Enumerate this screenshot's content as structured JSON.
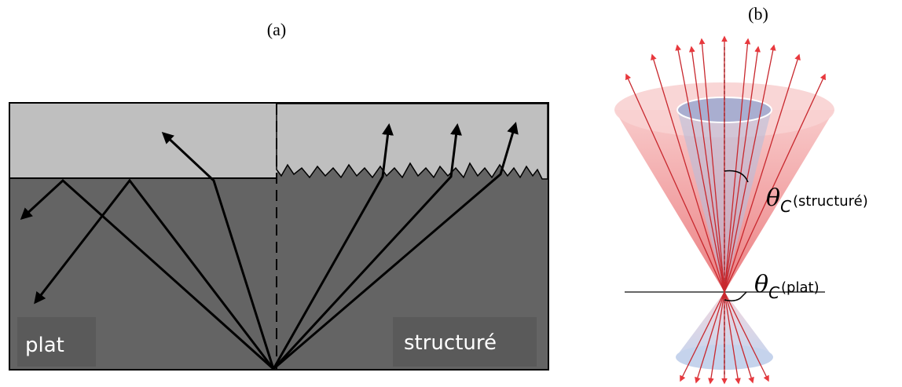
{
  "panel_a": {
    "label": "(a)",
    "left_label": "plat",
    "right_label": "structuré"
  },
  "panel_b": {
    "label": "(b)",
    "annotations": [
      {
        "symbol": "θ",
        "subscript": "C",
        "text": "(structuré)"
      },
      {
        "symbol": "θ",
        "subscript": "C",
        "text": "(plat)"
      }
    ]
  }
}
